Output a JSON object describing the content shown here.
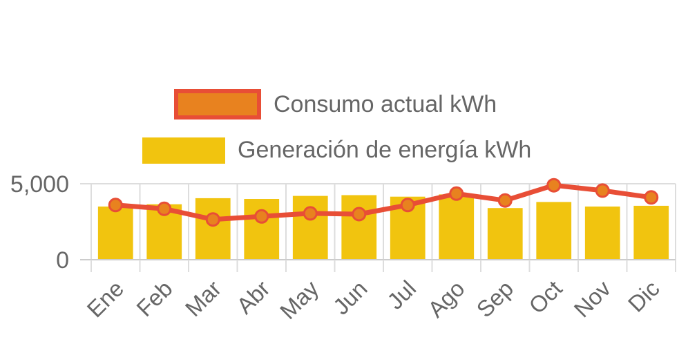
{
  "chart_data": {
    "type": "bar",
    "categories": [
      "Ene",
      "Feb",
      "Mar",
      "Abr",
      "May",
      "Jun",
      "Jul",
      "Ago",
      "Sep",
      "Oct",
      "Nov",
      "Dic"
    ],
    "series": [
      {
        "name": "Consumo actual kWh",
        "type": "line",
        "color": "#e84e36",
        "fill": "#e8821f",
        "values": [
          3600,
          3350,
          2650,
          2850,
          3050,
          3000,
          3600,
          4350,
          3900,
          4900,
          4550,
          4100
        ]
      },
      {
        "name": "Generación de energía kWh",
        "type": "bar",
        "color": "#f1c40f",
        "values": [
          3500,
          3650,
          4050,
          4000,
          4200,
          4250,
          4150,
          4300,
          3400,
          3800,
          3500,
          3550
        ]
      }
    ],
    "yticks": [
      {
        "value": 0,
        "label": "0"
      },
      {
        "value": 5000,
        "label": "5,000"
      }
    ],
    "ylim": [
      0,
      5000
    ],
    "legend": "top-center",
    "grid": true
  }
}
